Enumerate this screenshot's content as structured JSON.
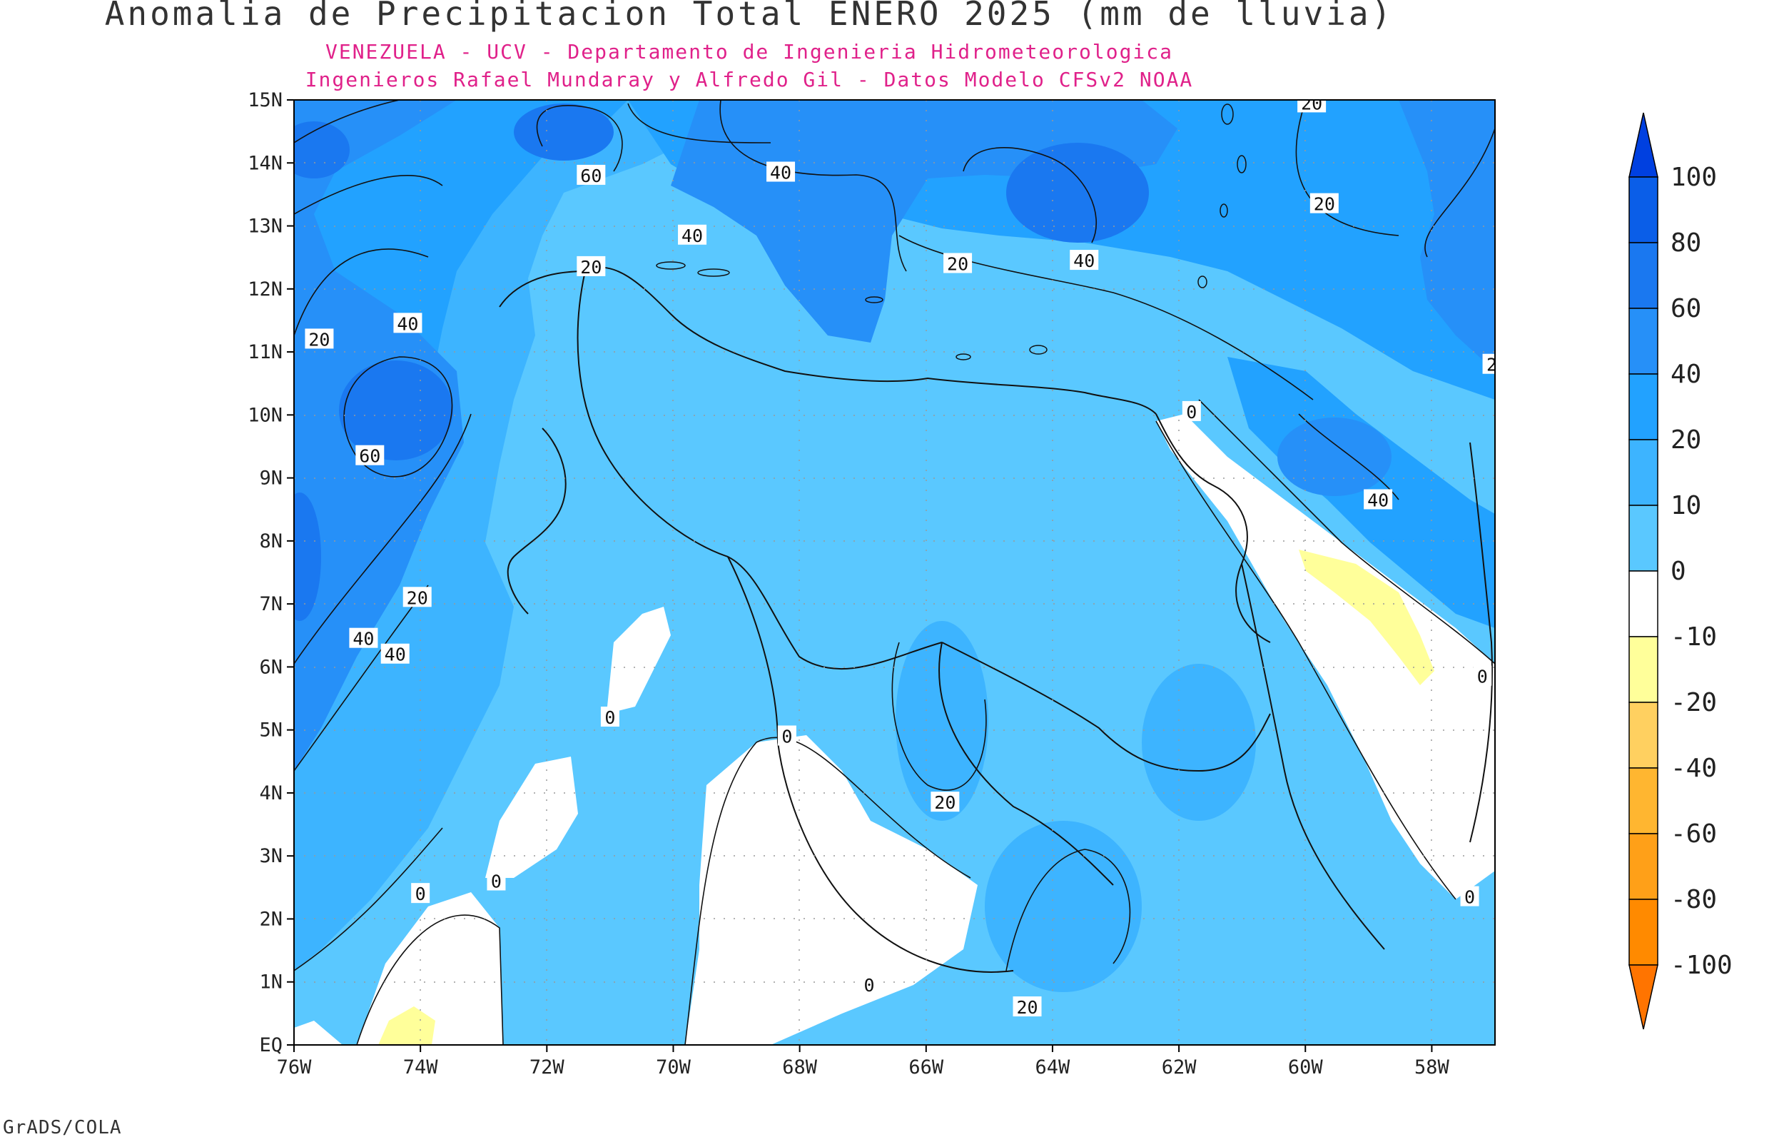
{
  "title": "Anomalia de Precipitacion Total ENERO 2025 (mm de lluvia)",
  "subtitle_1": "VENEZUELA - UCV - Departamento de Ingenieria Hidrometeorologica",
  "subtitle_2": "Ingenieros Rafael Mundaray y Alfredo Gil - Datos Modelo CFSv2 NOAA",
  "footer": "GrADS/COLA",
  "map": {
    "lon_range": [
      -76,
      -57
    ],
    "lat_range": [
      0,
      15
    ],
    "lon_ticks": [
      "76W",
      "74W",
      "72W",
      "70W",
      "68W",
      "66W",
      "64W",
      "62W",
      "60W",
      "58W"
    ],
    "lat_ticks": [
      "EQ",
      "1N",
      "2N",
      "3N",
      "4N",
      "5N",
      "6N",
      "7N",
      "8N",
      "9N",
      "10N",
      "11N",
      "12N",
      "13N",
      "14N",
      "15N"
    ],
    "contour_labels": [
      {
        "text": "60",
        "lon": -71.3,
        "lat": 13.8
      },
      {
        "text": "40",
        "lon": -68.3,
        "lat": 13.85
      },
      {
        "text": "40",
        "lon": -69.7,
        "lat": 12.85
      },
      {
        "text": "20",
        "lon": -71.3,
        "lat": 12.35
      },
      {
        "text": "20",
        "lon": -65.5,
        "lat": 12.4
      },
      {
        "text": "40",
        "lon": -63.5,
        "lat": 12.45
      },
      {
        "text": "20",
        "lon": -59.9,
        "lat": 14.95
      },
      {
        "text": "20",
        "lon": -59.7,
        "lat": 13.35
      },
      {
        "text": "20",
        "lon": -75.6,
        "lat": 11.2
      },
      {
        "text": "40",
        "lon": -74.2,
        "lat": 11.45
      },
      {
        "text": "60",
        "lon": -74.8,
        "lat": 9.35
      },
      {
        "text": "20",
        "lon": -74.05,
        "lat": 7.1
      },
      {
        "text": "40",
        "lon": -74.9,
        "lat": 6.45
      },
      {
        "text": "40",
        "lon": -74.4,
        "lat": 6.2
      },
      {
        "text": "0",
        "lon": -61.8,
        "lat": 10.05
      },
      {
        "text": "40",
        "lon": -58.85,
        "lat": 8.65
      },
      {
        "text": "2",
        "lon": -57.05,
        "lat": 10.8
      },
      {
        "text": "0",
        "lon": -71.0,
        "lat": 5.2
      },
      {
        "text": "0",
        "lon": -68.2,
        "lat": 4.9
      },
      {
        "text": "20",
        "lon": -65.7,
        "lat": 3.85
      },
      {
        "text": "0",
        "lon": -72.8,
        "lat": 2.6
      },
      {
        "text": "0",
        "lon": -74.0,
        "lat": 2.4
      },
      {
        "text": "0",
        "lon": -66.9,
        "lat": 0.95
      },
      {
        "text": "20",
        "lon": -64.4,
        "lat": 0.6
      },
      {
        "text": "0",
        "lon": -57.2,
        "lat": 5.85
      },
      {
        "text": "0",
        "lon": -57.4,
        "lat": 2.35
      }
    ]
  },
  "colorbar": {
    "levels": [
      "100",
      "80",
      "60",
      "40",
      "20",
      "10",
      "0",
      "-10",
      "-20",
      "-40",
      "-60",
      "-80",
      "-100"
    ],
    "colors": [
      "#0040e0",
      "#0a5ee8",
      "#1a78f0",
      "#2690f8",
      "#22a2ff",
      "#3db4ff",
      "#5ac8ff",
      "#ffffff",
      "#ffff9a",
      "#ffd060",
      "#ffb630",
      "#ffa018",
      "#ff8a00",
      "#ff7400"
    ]
  },
  "colors": {
    "c60": "#1a78f0",
    "c40": "#2690f8",
    "c20": "#22a2ff",
    "c10": "#3db4ff",
    "c0": "#5ac8ff",
    "neg": "#ffffff",
    "neg10": "#ffff9a"
  }
}
